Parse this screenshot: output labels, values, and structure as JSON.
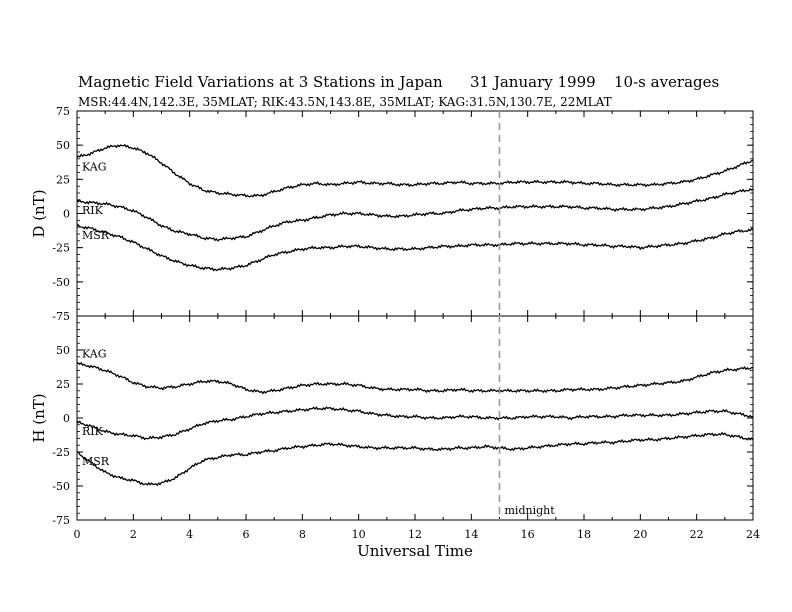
{
  "header": {
    "title": "Magnetic Field Variations at 3 Stations in Japan",
    "date": "31 January 1999",
    "averaging": "10-s averages",
    "stations_line": "MSR:44.4N,142.3E, 35MLAT;   RIK:43.5N,143.8E, 35MLAT;   KAG:31.5N,130.7E, 22MLAT"
  },
  "chart_data": [
    {
      "type": "line",
      "ylabel": "D (nT)",
      "xlim": [
        0,
        24
      ],
      "ylim": [
        -75,
        75
      ],
      "yticks": [
        75,
        50,
        25,
        0,
        -25,
        -50,
        -75
      ],
      "x": [
        0,
        0.5,
        1,
        1.5,
        2,
        2.5,
        3,
        3.5,
        4,
        4.5,
        5,
        5.5,
        6,
        6.5,
        7,
        7.5,
        8,
        8.5,
        9,
        9.5,
        10,
        10.5,
        11,
        11.5,
        12,
        12.5,
        13,
        13.5,
        14,
        14.5,
        15,
        15.5,
        16,
        16.5,
        17,
        17.5,
        18,
        18.5,
        19,
        19.5,
        20,
        20.5,
        21,
        21.5,
        22,
        22.5,
        23,
        23.5,
        24
      ],
      "series": [
        {
          "name": "KAG",
          "values": [
            41,
            44,
            48,
            50,
            48,
            44,
            37,
            29,
            22,
            17,
            15,
            14,
            13,
            13,
            16,
            19,
            21,
            22,
            21,
            22,
            23,
            22,
            22,
            21,
            21,
            22,
            22,
            23,
            22,
            22,
            22,
            23,
            23,
            23,
            23,
            23,
            22,
            22,
            21,
            21,
            21,
            21,
            22,
            23,
            25,
            28,
            31,
            35,
            39
          ]
        },
        {
          "name": "RIK",
          "values": [
            9,
            8,
            7,
            5,
            2,
            -3,
            -9,
            -13,
            -15,
            -18,
            -19,
            -18,
            -17,
            -13,
            -9,
            -6,
            -5,
            -3,
            -1,
            0,
            0,
            -1,
            -2,
            -2,
            -1,
            0,
            0,
            2,
            3,
            4,
            4,
            5,
            5,
            5,
            5,
            5,
            4,
            4,
            3,
            3,
            3,
            4,
            5,
            7,
            9,
            11,
            14,
            16,
            18
          ]
        },
        {
          "name": "MSR",
          "values": [
            -9,
            -11,
            -14,
            -17,
            -21,
            -26,
            -31,
            -35,
            -38,
            -40,
            -41,
            -40,
            -38,
            -34,
            -30,
            -28,
            -26,
            -25,
            -25,
            -24,
            -24,
            -25,
            -26,
            -26,
            -26,
            -25,
            -24,
            -24,
            -23,
            -23,
            -23,
            -22,
            -22,
            -22,
            -22,
            -22,
            -23,
            -23,
            -24,
            -24,
            -25,
            -24,
            -23,
            -22,
            -20,
            -18,
            -15,
            -13,
            -12
          ]
        }
      ]
    },
    {
      "type": "line",
      "ylabel": "H (nT)",
      "xlabel": "Universal Time",
      "xlim": [
        0,
        24
      ],
      "ylim": [
        -75,
        75
      ],
      "yticks": [
        50,
        25,
        0,
        -25,
        -50,
        -75
      ],
      "xticks": [
        0,
        2,
        4,
        6,
        8,
        10,
        12,
        14,
        16,
        18,
        20,
        22,
        24
      ],
      "x": [
        0,
        0.5,
        1,
        1.5,
        2,
        2.5,
        3,
        3.5,
        4,
        4.5,
        5,
        5.5,
        6,
        6.5,
        7,
        7.5,
        8,
        8.5,
        9,
        9.5,
        10,
        10.5,
        11,
        11.5,
        12,
        12.5,
        13,
        13.5,
        14,
        14.5,
        15,
        15.5,
        16,
        16.5,
        17,
        17.5,
        18,
        18.5,
        19,
        19.5,
        20,
        20.5,
        21,
        21.5,
        22,
        22.5,
        23,
        23.5,
        24
      ],
      "series": [
        {
          "name": "KAG",
          "values": [
            40,
            38,
            35,
            31,
            26,
            23,
            22,
            23,
            25,
            27,
            27,
            25,
            21,
            19,
            20,
            22,
            24,
            25,
            25,
            25,
            24,
            22,
            21,
            21,
            21,
            20,
            20,
            21,
            20,
            20,
            20,
            20,
            20,
            20,
            20,
            21,
            21,
            21,
            22,
            23,
            24,
            25,
            26,
            27,
            30,
            33,
            35,
            36,
            37
          ]
        },
        {
          "name": "RIK",
          "values": [
            -3,
            -6,
            -10,
            -12,
            -13,
            -15,
            -14,
            -12,
            -8,
            -4,
            -2,
            -1,
            1,
            3,
            4,
            5,
            6,
            7,
            7,
            6,
            5,
            3,
            2,
            1,
            1,
            0,
            0,
            1,
            1,
            0,
            0,
            0,
            1,
            1,
            1,
            0,
            1,
            1,
            1,
            2,
            2,
            2,
            2,
            3,
            4,
            5,
            5,
            3,
            1
          ]
        },
        {
          "name": "MSR",
          "values": [
            -25,
            -33,
            -40,
            -44,
            -46,
            -49,
            -48,
            -44,
            -37,
            -31,
            -29,
            -27,
            -27,
            -25,
            -24,
            -22,
            -21,
            -20,
            -19,
            -20,
            -21,
            -22,
            -22,
            -22,
            -22,
            -23,
            -23,
            -22,
            -22,
            -21,
            -22,
            -23,
            -22,
            -21,
            -20,
            -19,
            -19,
            -18,
            -18,
            -17,
            -16,
            -16,
            -15,
            -14,
            -13,
            -12,
            -12,
            -14,
            -16
          ]
        }
      ]
    }
  ],
  "annotations": {
    "midnight_label": "midnight",
    "midnight_ut": 15
  }
}
